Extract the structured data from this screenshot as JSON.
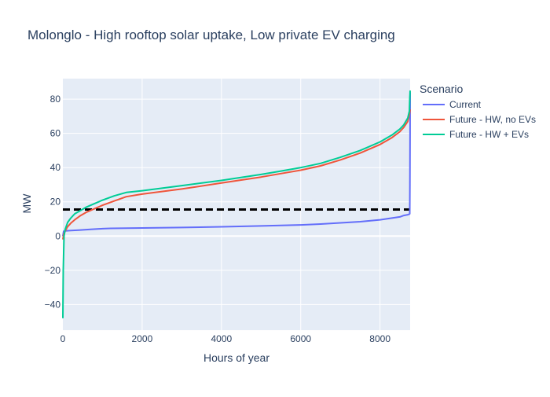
{
  "chart_data": {
    "type": "line",
    "title": "Molonglo - High rooftop solar uptake, Low private EV charging",
    "xlabel": "Hours of year",
    "ylabel": "MW",
    "xlim": [
      0,
      8760
    ],
    "ylim": [
      -55,
      92
    ],
    "xticks": [
      0,
      2000,
      4000,
      6000,
      8000
    ],
    "xtick_labels": [
      "0",
      "2000",
      "4000",
      "6000",
      "8000"
    ],
    "yticks": [
      -40,
      -20,
      0,
      20,
      40,
      60,
      80
    ],
    "ytick_labels": [
      "−40",
      "−20",
      "0",
      "20",
      "40",
      "60",
      "80"
    ],
    "grid": true,
    "legend": {
      "title": "Scenario",
      "placement": "right"
    },
    "reference_line": {
      "y": 15.5,
      "style": "dashed",
      "color": "#000000"
    },
    "series": [
      {
        "name": "Current",
        "color": "#636efa",
        "x": [
          0,
          20,
          60,
          120,
          200,
          400,
          700,
          1000,
          1200,
          2000,
          3000,
          4000,
          5000,
          6000,
          6500,
          7000,
          7500,
          8000,
          8300,
          8500,
          8600,
          8700,
          8740,
          8750,
          8755,
          8758,
          8760
        ],
        "y": [
          0,
          2.8,
          3,
          3.1,
          3.2,
          3.5,
          3.9,
          4.3,
          4.5,
          4.7,
          5.0,
          5.4,
          5.9,
          6.5,
          7.0,
          7.7,
          8.4,
          9.5,
          10.5,
          11.2,
          12.0,
          12.5,
          12.8,
          13,
          30,
          60,
          84
        ]
      },
      {
        "name": "Future - HW, no EVs",
        "color": "#ef553b",
        "x": [
          0,
          20,
          60,
          120,
          200,
          300,
          450,
          600,
          800,
          1000,
          1300,
          1600,
          2000,
          3000,
          4000,
          5000,
          5500,
          6000,
          6500,
          7000,
          7500,
          8000,
          8300,
          8500,
          8600,
          8700,
          8740,
          8760
        ],
        "y": [
          -2,
          1,
          3,
          5.5,
          7.5,
          9.5,
          12,
          14,
          16,
          18,
          20.5,
          23,
          24.5,
          27.5,
          31,
          34.5,
          36.5,
          38.5,
          41,
          44.5,
          48.5,
          53.5,
          57.5,
          61,
          63.5,
          67,
          71,
          74
        ]
      },
      {
        "name": "Future - HW + EVs",
        "color": "#00cc96",
        "x": [
          0,
          10,
          30,
          60,
          120,
          200,
          300,
          450,
          600,
          800,
          1000,
          1300,
          1600,
          2000,
          3000,
          4000,
          5000,
          5500,
          6000,
          6500,
          7000,
          7500,
          8000,
          8300,
          8500,
          8600,
          8700,
          8740,
          8750,
          8760
        ],
        "y": [
          -48,
          -20,
          0,
          4,
          8,
          10.5,
          13,
          15,
          17,
          19,
          21,
          23.5,
          25.5,
          26.5,
          29.5,
          32.5,
          36,
          38,
          40,
          42.5,
          46,
          50,
          55,
          59,
          62.5,
          65,
          69,
          73,
          80,
          85
        ]
      }
    ]
  }
}
